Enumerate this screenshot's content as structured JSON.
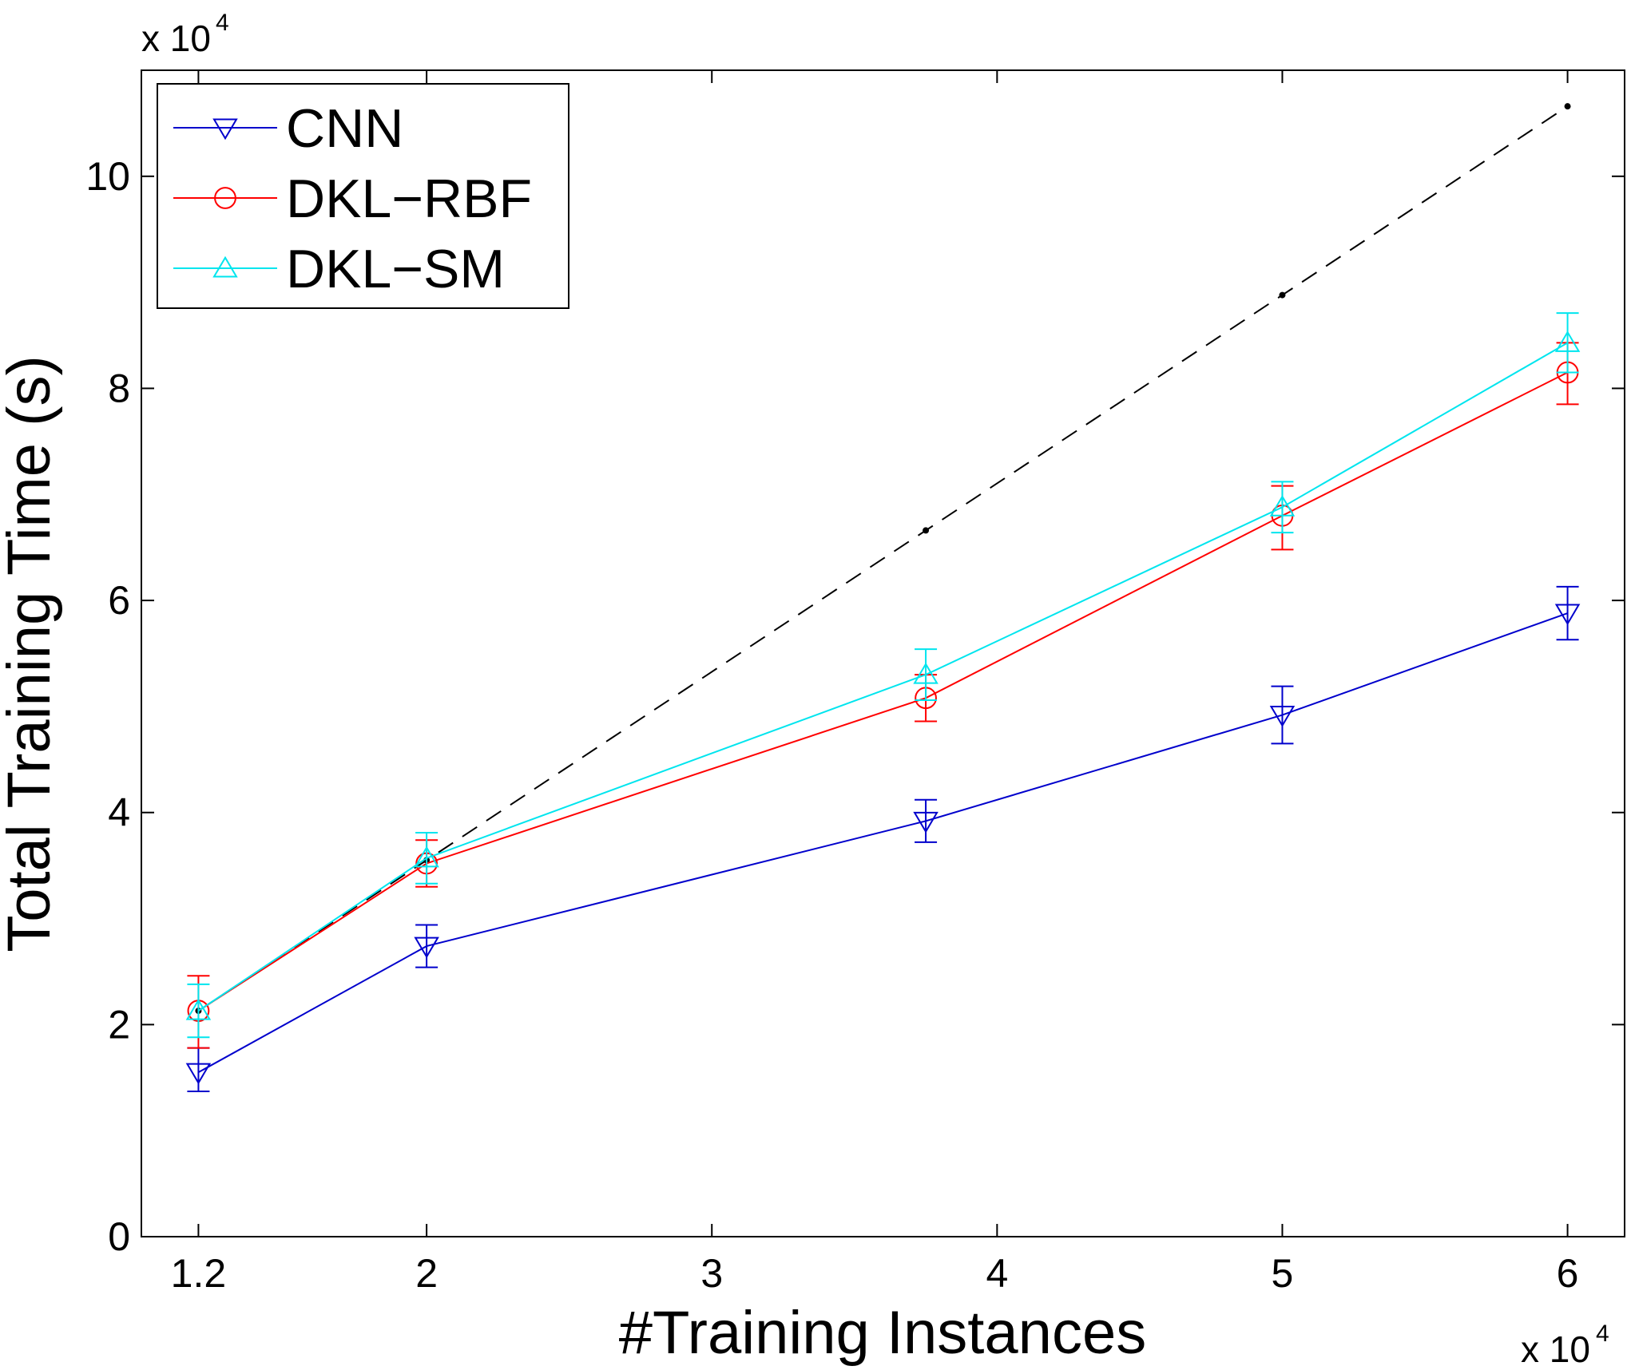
{
  "chart_data": {
    "type": "line",
    "title": "",
    "xlabel": "#Training Instances",
    "ylabel": "Total Training Time (s)",
    "x_scale_label": {
      "base": "x 10",
      "exponent": "4"
    },
    "y_scale_label": {
      "base": "x 10",
      "exponent": "4"
    },
    "xlim": [
      1.0,
      6.2
    ],
    "ylim": [
      0,
      11
    ],
    "x_ticks": [
      1.2,
      2,
      3,
      4,
      5,
      6
    ],
    "x_tick_labels": [
      "1.2",
      "2",
      "3",
      "4",
      "5",
      "6"
    ],
    "y_ticks": [
      0,
      2,
      4,
      6,
      8,
      10
    ],
    "y_tick_labels": [
      "0",
      "2",
      "4",
      "6",
      "8",
      "10"
    ],
    "grid": false,
    "legend_position": "top-left",
    "x": [
      1.2,
      2.0,
      3.75,
      5.0,
      6.0
    ],
    "series": [
      {
        "name": "CNN",
        "color": "#0000cc",
        "marker": "triangle-down",
        "values": [
          1.55,
          2.74,
          3.92,
          4.92,
          5.88
        ],
        "err_low": [
          1.37,
          2.54,
          3.72,
          4.65,
          5.63
        ],
        "err_high": [
          1.78,
          2.94,
          4.12,
          5.19,
          6.13
        ]
      },
      {
        "name": "DKL−RBF",
        "color": "#ff0000",
        "marker": "circle",
        "values": [
          2.13,
          3.52,
          5.08,
          6.8,
          8.15
        ],
        "err_low": [
          1.78,
          3.3,
          4.86,
          6.48,
          7.85
        ],
        "err_high": [
          2.46,
          3.74,
          5.3,
          7.08,
          8.43
        ]
      },
      {
        "name": "DKL−SM",
        "color": "#00e5ee",
        "marker": "triangle-up",
        "values": [
          2.13,
          3.57,
          5.3,
          6.88,
          8.43
        ],
        "err_low": [
          1.88,
          3.33,
          5.06,
          6.64,
          8.15
        ],
        "err_high": [
          2.38,
          3.81,
          5.54,
          7.12,
          8.71
        ]
      },
      {
        "color": "#000000",
        "style": "dashed",
        "marker": "dot",
        "values": [
          2.13,
          3.55,
          6.66,
          8.88,
          10.66
        ]
      }
    ]
  }
}
